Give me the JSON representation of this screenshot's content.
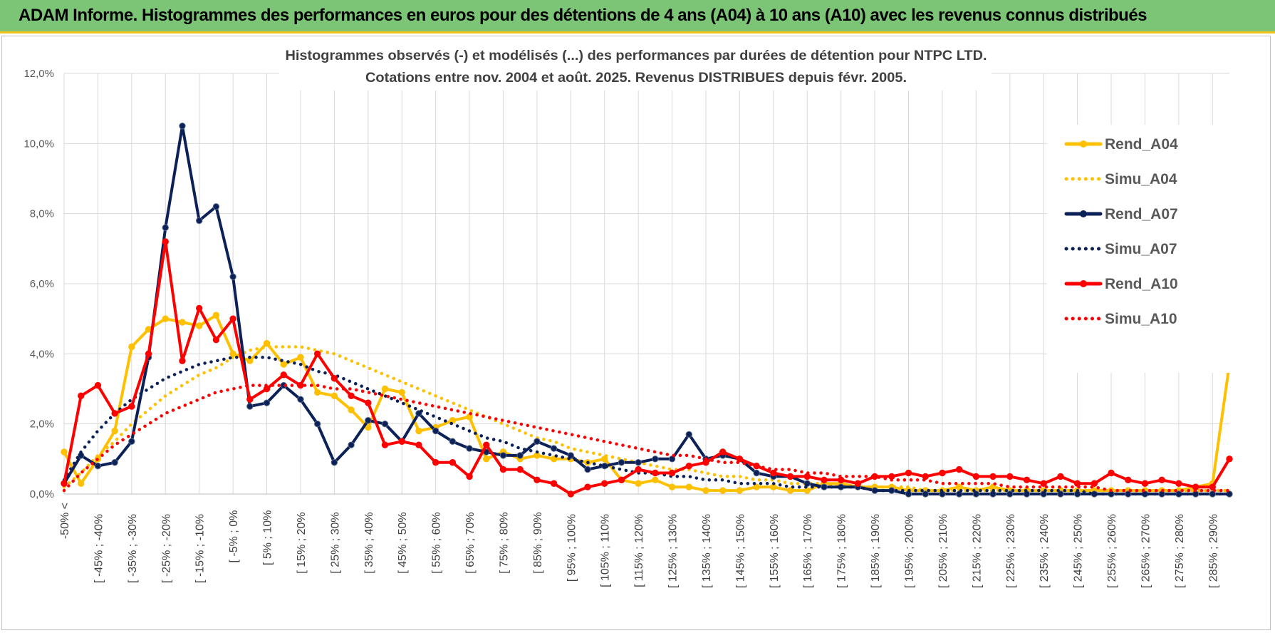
{
  "header": {
    "title": "ADAM Informe. Histogrammes des performances en euros pour des détentions de 4 ans (A04) à 10 ans (A10) avec les revenus connus distribués"
  },
  "chart_data": {
    "type": "line",
    "title": "Histogrammes observés (-) et modélisés (...) des performances par durées de détention pour NTPC LTD.",
    "subtitle": "Cotations entre nov. 2004 et août. 2025. Revenus DISTRIBUES depuis févr. 2005.",
    "ylim": [
      0,
      12
    ],
    "yticks": [
      "0,0%",
      "2,0%",
      "4,0%",
      "6,0%",
      "8,0%",
      "10,0%",
      "12,0%"
    ],
    "grid": true,
    "legend_position": "right",
    "x_labels": [
      "-50% <",
      "[ -45% ; -40%",
      "[ -35% ; -30%",
      "[ -25% ; -20%",
      "[ -15% ; -10%",
      "[ -5% ; 0%",
      "[ 5% ; 10%",
      "[ 15% ; 20%",
      "[ 25% ; 30%",
      "[ 35% ; 40%",
      "[ 45% ; 50%",
      "[ 55% ; 60%",
      "[ 65% ; 70%",
      "[ 75% ; 80%",
      "[ 85% ; 90%",
      "[ 95% ; 100%",
      "[ 105% ; 110%",
      "[ 115% ; 120%",
      "[ 125% ; 130%",
      "[ 135% ; 140%",
      "[ 145% ; 150%",
      "[ 155% ; 160%",
      "[ 165% ; 170%",
      "[ 175% ; 180%",
      "[ 185% ; 190%",
      "[ 195% ; 200%",
      "[ 205% ; 210%",
      "[ 215% ; 220%",
      "[ 225% ; 230%",
      "[ 235% ; 240%",
      "[ 245% ; 250%",
      "[ 255% ; 260%",
      "[ 265% ; 270%",
      "[ 275% ; 280%",
      "[ 285% ; 290%"
    ],
    "series": [
      {
        "name": "Rend_A04",
        "color": "#ffc000",
        "style": "solid",
        "markers": true,
        "values": [
          1.2,
          0.3,
          1.0,
          1.8,
          4.2,
          4.7,
          5.0,
          4.9,
          4.8,
          5.1,
          4.0,
          3.8,
          4.3,
          3.7,
          3.9,
          2.9,
          2.8,
          2.4,
          1.9,
          3.0,
          2.9,
          1.8,
          1.9,
          2.1,
          2.2,
          1.0,
          1.2,
          1.0,
          1.1,
          1.0,
          1.0,
          0.9,
          1.0,
          0.4,
          0.3,
          0.4,
          0.2,
          0.2,
          0.1,
          0.1,
          0.1,
          0.2,
          0.2,
          0.1,
          0.1,
          0.3,
          0.3,
          0.2,
          0.2,
          0.2,
          0.1,
          0.1,
          0.1,
          0.2,
          0.1,
          0.2,
          0.1,
          0.1,
          0.1,
          0.1,
          0.1,
          0.1,
          0.1,
          0.1,
          0.1,
          0.1,
          0.1,
          0.2,
          0.3,
          3.7
        ]
      },
      {
        "name": "Simu_A04",
        "color": "#ffc000",
        "style": "dotted",
        "markers": false,
        "values": [
          0.2,
          0.6,
          1.1,
          1.5,
          2.0,
          2.4,
          2.8,
          3.1,
          3.4,
          3.6,
          3.9,
          4.1,
          4.2,
          4.2,
          4.2,
          4.1,
          4.0,
          3.8,
          3.6,
          3.4,
          3.2,
          3.0,
          2.8,
          2.6,
          2.4,
          2.2,
          2.0,
          1.8,
          1.6,
          1.5,
          1.3,
          1.2,
          1.1,
          1.0,
          0.9,
          0.8,
          0.7,
          0.7,
          0.6,
          0.5,
          0.5,
          0.4,
          0.4,
          0.3,
          0.3,
          0.3,
          0.2,
          0.2,
          0.2,
          0.2,
          0.2,
          0.1,
          0.1,
          0.1,
          0.1,
          0.1,
          0.1,
          0.1,
          0.1,
          0.1,
          0.1,
          0.1,
          0.1,
          0.1,
          0.1,
          0.1,
          0.1,
          0.1,
          0.1,
          0.1
        ]
      },
      {
        "name": "Rend_A07",
        "color": "#0b2157",
        "style": "solid",
        "markers": true,
        "values": [
          0.3,
          1.1,
          0.8,
          0.9,
          1.5,
          3.9,
          7.6,
          10.5,
          7.8,
          8.2,
          6.2,
          2.5,
          2.6,
          3.1,
          2.7,
          2.0,
          0.9,
          1.4,
          2.1,
          2.0,
          1.5,
          2.3,
          1.8,
          1.5,
          1.3,
          1.2,
          1.1,
          1.1,
          1.5,
          1.3,
          1.1,
          0.7,
          0.8,
          0.9,
          0.9,
          1.0,
          1.0,
          1.7,
          1.0,
          1.1,
          1.0,
          0.6,
          0.5,
          0.5,
          0.3,
          0.2,
          0.2,
          0.2,
          0.1,
          0.1,
          0.0,
          0.0,
          0.0,
          0.0,
          0.0,
          0.0,
          0.0,
          0.0,
          0.0,
          0.0,
          0.0,
          0.0,
          0.0,
          0.0,
          0.0,
          0.0,
          0.0,
          0.0,
          0.0,
          0.0
        ]
      },
      {
        "name": "Simu_A07",
        "color": "#0b2157",
        "style": "dotted",
        "markers": false,
        "values": [
          0.4,
          1.2,
          1.8,
          2.3,
          2.7,
          3.0,
          3.3,
          3.5,
          3.7,
          3.8,
          3.9,
          3.9,
          3.9,
          3.8,
          3.7,
          3.5,
          3.4,
          3.2,
          3.0,
          2.8,
          2.6,
          2.4,
          2.2,
          2.0,
          1.8,
          1.6,
          1.5,
          1.3,
          1.2,
          1.1,
          1.0,
          0.9,
          0.8,
          0.7,
          0.6,
          0.6,
          0.5,
          0.5,
          0.4,
          0.4,
          0.3,
          0.3,
          0.3,
          0.2,
          0.2,
          0.2,
          0.2,
          0.2,
          0.1,
          0.1,
          0.1,
          0.1,
          0.1,
          0.1,
          0.1,
          0.1,
          0.1,
          0.1,
          0.1,
          0.1,
          0.1,
          0.0,
          0.0,
          0.0,
          0.0,
          0.0,
          0.0,
          0.0,
          0.0,
          0.0
        ]
      },
      {
        "name": "Rend_A10",
        "color": "#ff0000",
        "style": "solid",
        "markers": true,
        "values": [
          0.3,
          2.8,
          3.1,
          2.3,
          2.5,
          4.0,
          7.2,
          3.8,
          5.3,
          4.4,
          5.0,
          2.7,
          3.0,
          3.4,
          3.1,
          4.0,
          3.3,
          2.8,
          2.6,
          1.4,
          1.5,
          1.4,
          0.9,
          0.9,
          0.5,
          1.4,
          0.7,
          0.7,
          0.4,
          0.3,
          0.0,
          0.2,
          0.3,
          0.4,
          0.7,
          0.6,
          0.6,
          0.8,
          0.9,
          1.2,
          1.0,
          0.8,
          0.6,
          0.5,
          0.5,
          0.4,
          0.4,
          0.3,
          0.5,
          0.5,
          0.6,
          0.5,
          0.6,
          0.7,
          0.5,
          0.5,
          0.5,
          0.4,
          0.3,
          0.5,
          0.3,
          0.3,
          0.6,
          0.4,
          0.3,
          0.4,
          0.3,
          0.2,
          0.2,
          1.0
        ]
      },
      {
        "name": "Simu_A10",
        "color": "#ff0000",
        "style": "dotted",
        "markers": false,
        "values": [
          0.1,
          0.6,
          1.0,
          1.4,
          1.7,
          2.0,
          2.3,
          2.5,
          2.7,
          2.9,
          3.0,
          3.1,
          3.1,
          3.1,
          3.1,
          3.1,
          3.0,
          3.0,
          2.9,
          2.8,
          2.7,
          2.6,
          2.5,
          2.4,
          2.3,
          2.2,
          2.1,
          2.0,
          1.9,
          1.8,
          1.7,
          1.6,
          1.5,
          1.4,
          1.3,
          1.2,
          1.1,
          1.1,
          1.0,
          0.9,
          0.9,
          0.8,
          0.7,
          0.7,
          0.6,
          0.6,
          0.5,
          0.5,
          0.5,
          0.4,
          0.4,
          0.4,
          0.3,
          0.3,
          0.3,
          0.3,
          0.2,
          0.2,
          0.2,
          0.2,
          0.2,
          0.2,
          0.1,
          0.1,
          0.1,
          0.1,
          0.1,
          0.1,
          0.1,
          0.1
        ]
      }
    ]
  }
}
